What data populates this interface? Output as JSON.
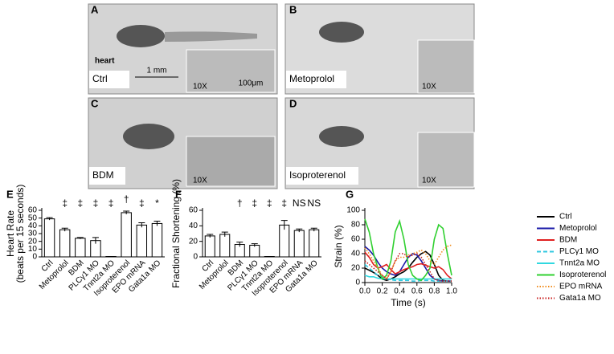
{
  "photos": [
    {
      "letter": "A",
      "label": "Ctrl",
      "arrow_label": "heart",
      "scale": "1 mm",
      "zoom": "10X",
      "inset_scale": "100μm"
    },
    {
      "letter": "B",
      "label": "Metoprolol",
      "zoom": "10X"
    },
    {
      "letter": "C",
      "label": "BDM",
      "zoom": "10X"
    },
    {
      "letter": "D",
      "label": "Isoproterenol",
      "zoom": "10X"
    }
  ],
  "chart_data": [
    {
      "type": "bar",
      "label": "E",
      "ylabel": [
        "Heart Rate",
        "(beats per 15 seconds)"
      ],
      "categories": [
        "Ctrl",
        "Metoprolol",
        "BDM",
        "PLCγ1 MO",
        "Tnnt2a MO",
        "Isoproterenol",
        "EPO mRNA",
        "Gata1a MO"
      ],
      "values": [
        49,
        35,
        24,
        21,
        0.5,
        57,
        41,
        43
      ],
      "errors": [
        1.5,
        2,
        1,
        4,
        0,
        2,
        3,
        3
      ],
      "significance": [
        null,
        "‡",
        "‡",
        "‡",
        "‡",
        "†",
        "‡",
        "*"
      ],
      "ylim": [
        0,
        60
      ],
      "yticks": [
        0,
        10,
        20,
        30,
        40,
        50,
        60
      ],
      "color": "#ffffff"
    },
    {
      "type": "bar",
      "label": "F",
      "ylabel": [
        "Fractional Shortening (%)"
      ],
      "categories": [
        "Ctrl",
        "Metoprolol",
        "BDM",
        "PLCγ1 MO",
        "Tnnt2a MO",
        "Isoproterenol",
        "EPO mRNA",
        "Gata1a MO"
      ],
      "values": [
        27,
        29,
        16,
        15,
        0.5,
        41,
        34,
        35
      ],
      "errors": [
        2,
        3,
        3,
        2,
        0,
        6,
        2,
        2
      ],
      "significance": [
        null,
        null,
        "†",
        "‡",
        "‡",
        "‡",
        "NS",
        "NS"
      ],
      "ylim": [
        0,
        60
      ],
      "yticks": [
        0,
        20,
        40,
        60
      ],
      "color": "#ffffff"
    },
    {
      "type": "line",
      "label": "G",
      "xlabel": "Time (s)",
      "ylabel": [
        "Strain (%)"
      ],
      "x": [
        0,
        0.05,
        0.1,
        0.15,
        0.2,
        0.25,
        0.3,
        0.35,
        0.4,
        0.45,
        0.5,
        0.55,
        0.6,
        0.65,
        0.7,
        0.75,
        0.8,
        0.85,
        0.9,
        0.95,
        1.0
      ],
      "xlim": [
        0,
        1
      ],
      "xticks": [
        {
          "value": 0,
          "label": "0.0"
        },
        {
          "value": 0.2,
          "label": "0.2"
        },
        {
          "value": 0.4,
          "label": "0.4"
        },
        {
          "value": 0.6,
          "label": "0.6"
        },
        {
          "value": 0.8,
          "label": "0.8"
        },
        {
          "value": 1,
          "label": "1.0"
        }
      ],
      "ylim": [
        0,
        100
      ],
      "yticks": [
        0,
        20,
        40,
        60,
        80,
        100
      ],
      "legend": "right",
      "series": [
        {
          "name": "Ctrl",
          "color": "#000000",
          "dash": "solid",
          "values": [
            20,
            17,
            14,
            10,
            5,
            3,
            5,
            8,
            12,
            15,
            20,
            28,
            35,
            40,
            43,
            38,
            25,
            10,
            3,
            2,
            2
          ]
        },
        {
          "name": "Metoprolol",
          "color": "#1a1aa8",
          "dash": "solid",
          "values": [
            50,
            45,
            38,
            28,
            20,
            15,
            12,
            10,
            15,
            25,
            35,
            40,
            38,
            30,
            20,
            10,
            5,
            3,
            2,
            2,
            2
          ]
        },
        {
          "name": "BDM",
          "color": "#e02020",
          "dash": "solid",
          "values": [
            42,
            35,
            25,
            20,
            22,
            25,
            18,
            12,
            15,
            18,
            20,
            22,
            25,
            26,
            24,
            22,
            20,
            22,
            18,
            10,
            5
          ]
        },
        {
          "name": "PLCγ1 MO",
          "color": "#30c8e0",
          "dash": "dashed",
          "values": [
            25,
            20,
            15,
            10,
            8,
            5,
            4,
            3,
            3,
            3,
            3,
            2,
            2,
            3,
            3,
            3,
            2,
            2,
            2,
            2,
            2
          ]
        },
        {
          "name": "Tnnt2a MO",
          "color": "#30d8e0",
          "dash": "solid",
          "values": [
            10,
            8,
            8,
            6,
            5,
            5,
            5,
            5,
            5,
            5,
            5,
            5,
            5,
            5,
            5,
            5,
            5,
            5,
            5,
            5,
            5
          ]
        },
        {
          "name": "Isoproterenol",
          "color": "#30d030",
          "dash": "solid",
          "values": [
            88,
            70,
            40,
            20,
            5,
            10,
            30,
            70,
            85,
            60,
            25,
            10,
            5,
            3,
            10,
            20,
            60,
            80,
            75,
            40,
            10
          ]
        },
        {
          "name": "EPO mRNA",
          "color": "#f08c1e",
          "dash": "dotted",
          "values": [
            48,
            40,
            30,
            20,
            10,
            5,
            15,
            30,
            35,
            35,
            38,
            40,
            42,
            45,
            40,
            30,
            25,
            35,
            45,
            50,
            52
          ]
        },
        {
          "name": "Gata1a MO",
          "color": "#c81e1e",
          "dash": "dotted",
          "values": [
            30,
            25,
            20,
            15,
            10,
            5,
            15,
            30,
            40,
            40,
            35,
            38,
            40,
            35,
            25,
            15,
            5,
            3,
            2,
            2,
            2
          ]
        }
      ]
    }
  ]
}
